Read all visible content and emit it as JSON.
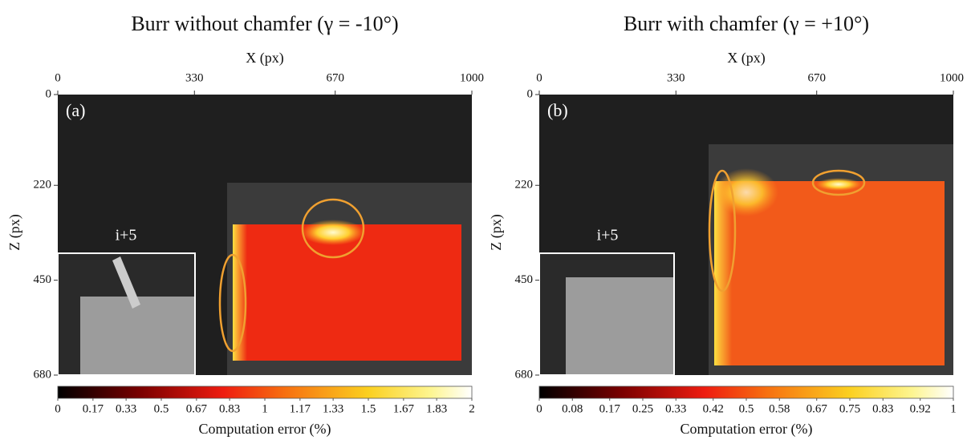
{
  "chart_data": [
    {
      "type": "heatmap",
      "title": "Burr without chamfer (γ = -10°)",
      "panel_label": "(a)",
      "inset_label": "i+5",
      "xlabel": "X (px)",
      "ylabel": "Z (px)",
      "xlim": [
        0,
        1000
      ],
      "ylim": [
        0,
        680
      ],
      "xticks": [
        0,
        330,
        670,
        1000
      ],
      "yticks": [
        0,
        220,
        450,
        680
      ],
      "colorbar": {
        "label": "Computation error (%)",
        "lim": [
          0,
          2
        ],
        "ticks": [
          0,
          0.17,
          0.33,
          0.5,
          0.67,
          0.83,
          1,
          1.17,
          1.33,
          1.5,
          1.67,
          1.83,
          2
        ]
      }
    },
    {
      "type": "heatmap",
      "title": "Burr with chamfer (γ = +10°)",
      "panel_label": "(b)",
      "inset_label": "i+5",
      "xlabel": "X (px)",
      "ylabel": "Z (px)",
      "xlim": [
        0,
        1000
      ],
      "ylim": [
        0,
        680
      ],
      "xticks": [
        0,
        330,
        670,
        1000
      ],
      "yticks": [
        0,
        220,
        450,
        680
      ],
      "colorbar": {
        "label": "Computation error (%)",
        "lim": [
          0,
          1
        ],
        "ticks": [
          0,
          0.08,
          0.17,
          0.25,
          0.33,
          0.42,
          0.5,
          0.58,
          0.67,
          0.75,
          0.83,
          0.92,
          1
        ]
      }
    }
  ]
}
